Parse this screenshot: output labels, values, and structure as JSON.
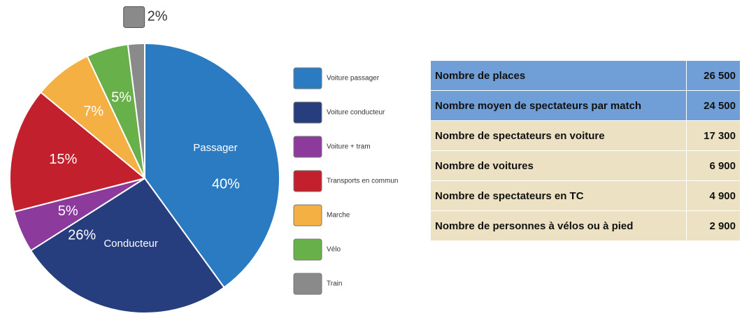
{
  "chart_data": {
    "type": "pie",
    "categories": [
      "Voiture passager",
      "Voiture conducteur",
      "Voiture + tram",
      "Transports en commun",
      "Marche",
      "Vélo",
      "Train"
    ],
    "slice_labels": [
      "Passager",
      "Conducteur",
      null,
      null,
      null,
      null,
      null
    ],
    "values": [
      40,
      26,
      5,
      15,
      7,
      5,
      2
    ],
    "value_labels": [
      "40%",
      "26%",
      "5%",
      "15%",
      "7%",
      "5%",
      "2%"
    ],
    "colors": [
      "#2a7bc1",
      "#263d7e",
      "#8c3b9c",
      "#c3202e",
      "#f4b043",
      "#68b04a",
      "#8a8a8a"
    ]
  },
  "table": {
    "rows": [
      [
        "Nombre de places",
        "26 500"
      ],
      [
        "Nombre moyen de spectateurs par match",
        "24 500"
      ],
      [
        "Nombre de spectateurs en voiture",
        "17 300"
      ],
      [
        "Nombre de voitures",
        "6 900"
      ],
      [
        "Nombre de spectateurs en TC",
        "4 900"
      ],
      [
        "Nombre de personnes à vélos ou à pied",
        "2 900"
      ]
    ]
  }
}
